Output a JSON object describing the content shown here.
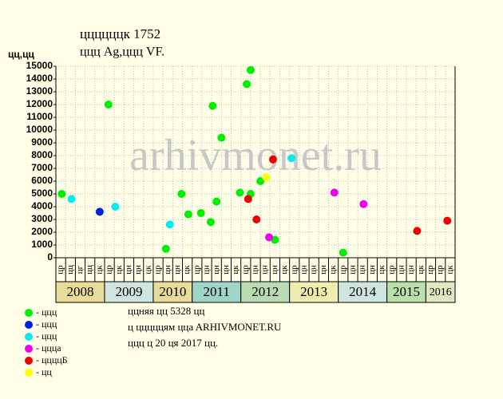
{
  "chart_data": {
    "type": "scatter",
    "title": "ццццццк 1752",
    "subtitle": "ццц Ag,ццц VF.",
    "y_label": "цц,цц",
    "watermark": "arhivmonet.ru",
    "ylim": [
      0,
      15000
    ],
    "yticks": [
      0,
      1000,
      2000,
      3000,
      4000,
      5000,
      6000,
      7000,
      8000,
      9000,
      10000,
      11000,
      12000,
      13000,
      14000,
      15000
    ],
    "xlim": [
      0,
      41
    ],
    "grid": true,
    "years": [
      {
        "label": "2008",
        "color": "#e8dc98",
        "months": [
          "цр",
          "цц",
          "цг",
          "цц",
          "цк"
        ]
      },
      {
        "label": "2009",
        "color": "#cfe6e0",
        "months": [
          "цр",
          "цк",
          "цн",
          "цн",
          "цк"
        ]
      },
      {
        "label": "2010",
        "color": "#e8dc98",
        "months": [
          "цр",
          "цн",
          "цн",
          "цк"
        ]
      },
      {
        "label": "2011",
        "color": "#9fd4c8",
        "months": [
          "цр",
          "цн",
          "цн",
          "цн",
          "цк"
        ]
      },
      {
        "label": "2012",
        "color": "#b8dcb0",
        "months": [
          "цр",
          "цн",
          "цн",
          "цн",
          "цк"
        ]
      },
      {
        "label": "2013",
        "color": "#f0ecb0",
        "months": [
          "цр",
          "цн",
          "цн",
          "цн",
          "цк"
        ]
      },
      {
        "label": "2014",
        "color": "#cfe6e0",
        "months": [
          "цр",
          "цн",
          "цн",
          "цн",
          "цк"
        ]
      },
      {
        "label": "2015",
        "color": "#b8e0a8",
        "months": [
          "цр",
          "цн",
          "цн",
          "цк"
        ]
      },
      {
        "label": "2016",
        "color": "#e0e8c0",
        "months": [
          "цр",
          "цр",
          "цк"
        ]
      }
    ],
    "series": [
      {
        "name": "- ццц",
        "color": "#00ee00",
        "x": [
          0.6,
          5.4,
          11.3,
          12.9,
          13.6,
          14.9,
          15.9,
          16.1,
          16.5,
          17.0,
          18.9,
          19.6,
          20.0,
          20.0,
          21.0,
          22.5,
          29.5
        ],
        "values": [
          5000,
          12000,
          700,
          5000,
          3400,
          3500,
          2800,
          11900,
          4400,
          9400,
          5100,
          13600,
          14700,
          5000,
          6000,
          1400,
          400
        ]
      },
      {
        "name": "- ццц",
        "color": "#0022dd",
        "x": [
          4.5
        ],
        "values": [
          3600
        ]
      },
      {
        "name": "- ццц",
        "color": "#00eeee",
        "x": [
          1.6,
          6.1,
          11.7,
          24.2
        ],
        "values": [
          4600,
          4000,
          2600,
          7800
        ]
      },
      {
        "name": "- цццa",
        "color": "#ee00ee",
        "x": [
          21.9,
          28.6,
          31.6
        ],
        "values": [
          1600,
          5100,
          4200
        ]
      },
      {
        "name": "- ццццБ",
        "color": "#ee0000",
        "x": [
          19.75,
          20.6,
          22.3,
          37.1,
          40.2
        ],
        "values": [
          4600,
          3000,
          7700,
          2100,
          2900
        ]
      },
      {
        "name": "- цц",
        "color": "#ffff00",
        "x": [
          21.6
        ],
        "values": [
          6300
        ]
      }
    ],
    "notes": [
      "ццняя цц 5328 цц",
      "ц цццццям ццa ARHIVMONET.RU",
      "ццц ц 20 ця 2017 цц."
    ]
  }
}
